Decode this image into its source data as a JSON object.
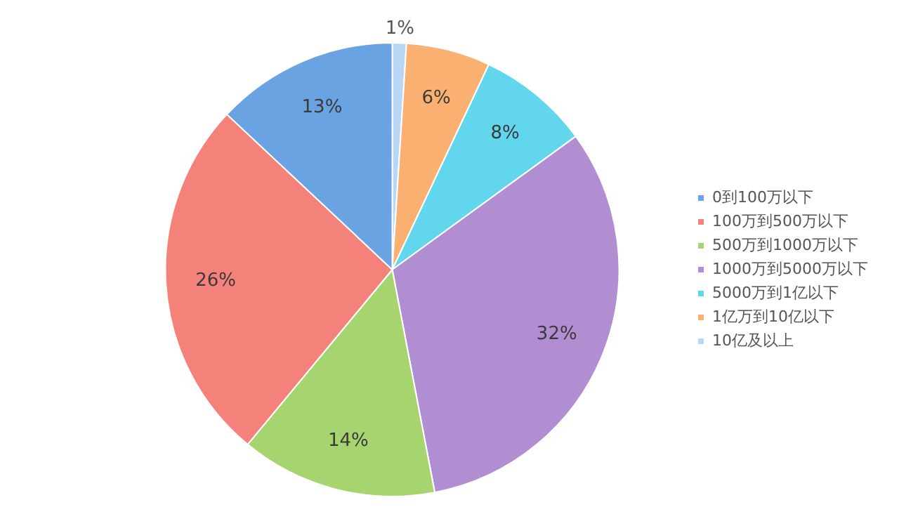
{
  "chart_data": {
    "type": "pie",
    "categories": [
      "10亿及以上",
      "1亿万到10亿以下",
      "5000万到1亿以下",
      "1000万到5000万以下",
      "500万到1000万以下",
      "100万到500万以下",
      "0到100万以下"
    ],
    "values": [
      1,
      6,
      8,
      32,
      14,
      26,
      13
    ],
    "colors": [
      "#b9d7f5",
      "#f9b070",
      "#62d6ec",
      "#b18ed1",
      "#a6d56f",
      "#f4817a",
      "#6aa3e2"
    ],
    "value_labels": [
      "1%",
      "6%",
      "8%",
      "32%",
      "14%",
      "26%",
      "13%"
    ],
    "legend": "right"
  }
}
